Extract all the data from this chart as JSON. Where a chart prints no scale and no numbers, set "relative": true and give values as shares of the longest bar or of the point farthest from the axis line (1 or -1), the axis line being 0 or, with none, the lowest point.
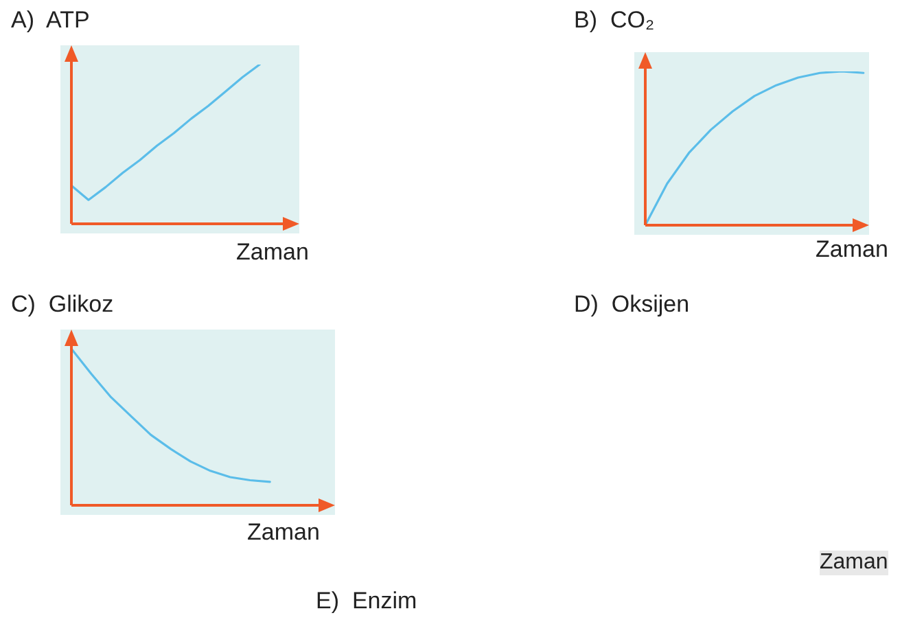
{
  "chart_data": [
    {
      "type": "line",
      "title": "A)  ATP",
      "xlabel": "Zaman",
      "relative": true,
      "color": "#5bbde9",
      "categories": [
        null,
        null,
        null,
        null,
        null,
        null,
        null,
        null,
        null,
        null,
        null,
        null,
        null,
        null
      ],
      "values": [
        0.24,
        0.15,
        0.23,
        0.32,
        0.4,
        0.49,
        0.57,
        0.66,
        0.74,
        0.83,
        0.92,
        1.0,
        null,
        null
      ]
    },
    {
      "type": "line",
      "title": "B)  CO₂",
      "xlabel": "Zaman",
      "relative": true,
      "color": "#5bbde9",
      "categories": [
        null,
        null,
        null,
        null,
        null,
        null,
        null,
        null,
        null,
        null,
        null
      ],
      "values": [
        0,
        0.27,
        0.47,
        0.62,
        0.74,
        0.84,
        0.91,
        0.96,
        0.99,
        1,
        0.99
      ]
    },
    {
      "type": "line",
      "title": "C)  Glikoz",
      "xlabel": "Zaman",
      "relative": true,
      "color": "#5bbde9",
      "categories": [
        null,
        null,
        null,
        null,
        null,
        null,
        null,
        null,
        null,
        null,
        null,
        null,
        null,
        null
      ],
      "values": [
        1,
        0.84,
        0.69,
        0.57,
        0.45,
        0.36,
        0.28,
        0.22,
        0.18,
        0.16,
        0.15,
        null,
        null,
        null
      ]
    },
    {
      "type": "other",
      "title": "D)  Oksijen",
      "annotations": [
        "Zaman"
      ]
    },
    {
      "type": "other",
      "title": "E)  Enzim"
    }
  ]
}
